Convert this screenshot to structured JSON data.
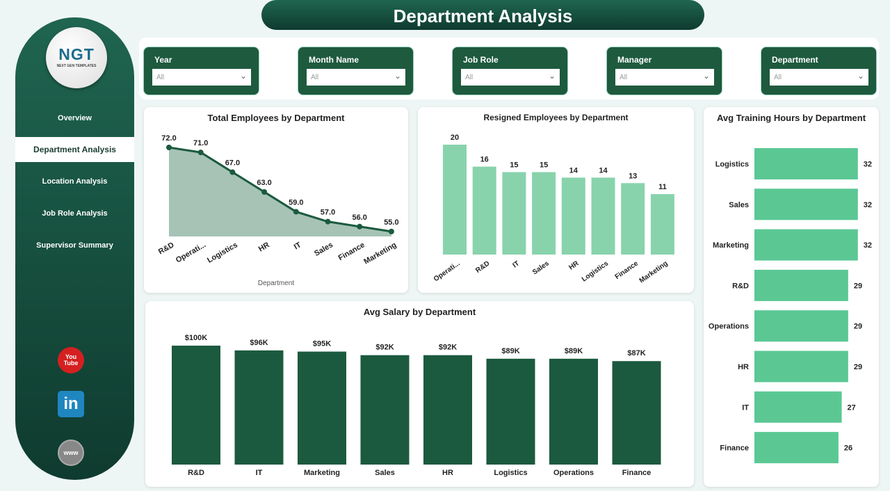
{
  "title": "Department Analysis",
  "logo": {
    "text": "NGT",
    "subtitle": "NEXT GEN TEMPLATES"
  },
  "nav": [
    "Overview",
    "Department Analysis",
    "Location Analysis",
    "Job Role Analysis",
    "Supervisor Summary"
  ],
  "social": {
    "youtube": "You Tube",
    "linkedin": "in",
    "web": "www"
  },
  "filters": [
    {
      "label": "Year",
      "value": "All"
    },
    {
      "label": "Month Name",
      "value": "All"
    },
    {
      "label": "Job Role",
      "value": "All"
    },
    {
      "label": "Manager",
      "value": "All"
    },
    {
      "label": "Department",
      "value": "All"
    }
  ],
  "colors": {
    "dark": "#1b5a3e",
    "light": "#88d3ac",
    "mint": "#5bc894",
    "area": "#a6c3b6"
  },
  "chart_data": [
    {
      "type": "area",
      "title": "Total Employees by Department",
      "xlabel": "Department",
      "categories": [
        "R&D",
        "Operati...",
        "Logistics",
        "HR",
        "IT",
        "Sales",
        "Finance",
        "Marketing"
      ],
      "values": [
        72,
        71,
        67,
        63,
        59,
        57,
        56,
        55
      ],
      "labels": [
        "72.0",
        "71.0",
        "67.0",
        "63.0",
        "59.0",
        "57.0",
        "56.0",
        "55.0"
      ],
      "ylim": [
        54,
        72
      ]
    },
    {
      "type": "bar",
      "title": "Resigned Employees by Department",
      "categories": [
        "Operati...",
        "R&D",
        "IT",
        "Sales",
        "HR",
        "Logistics",
        "Finance",
        "Marketing"
      ],
      "values": [
        20,
        16,
        15,
        15,
        14,
        14,
        13,
        11
      ],
      "ylim": [
        0,
        20
      ]
    },
    {
      "type": "bar",
      "orientation": "horizontal",
      "title": "Avg Training Hours by Department",
      "categories": [
        "Logistics",
        "Sales",
        "Marketing",
        "R&D",
        "Operations",
        "HR",
        "IT",
        "Finance"
      ],
      "values": [
        32,
        32,
        32,
        29,
        29,
        29,
        27,
        26
      ]
    },
    {
      "type": "bar",
      "title": "Avg Salary by Department",
      "categories": [
        "R&D",
        "IT",
        "Marketing",
        "Sales",
        "HR",
        "Logistics",
        "Operations",
        "Finance"
      ],
      "values": [
        100,
        96,
        95,
        92,
        92,
        89,
        89,
        87
      ],
      "labels": [
        "$100K",
        "$96K",
        "$95K",
        "$92K",
        "$92K",
        "$89K",
        "$89K",
        "$87K"
      ],
      "unit": "K USD"
    }
  ]
}
